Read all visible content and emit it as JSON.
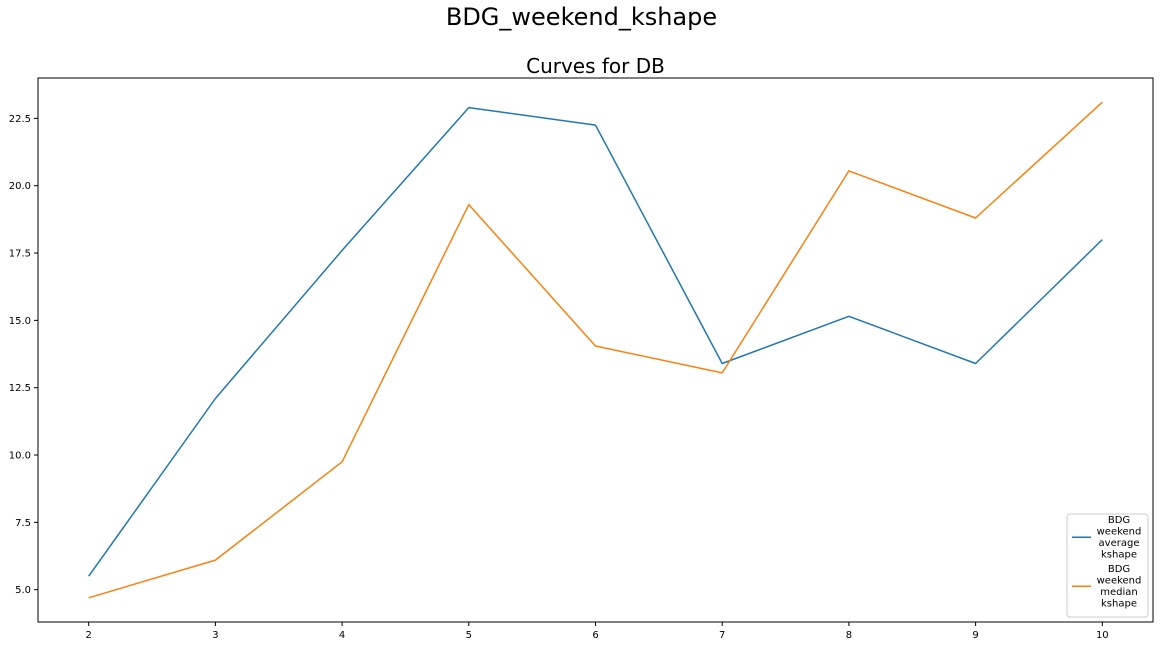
{
  "suptitle": "BDG_weekend_kshape",
  "chart_data": {
    "type": "line",
    "title": "Curves for DB",
    "xlabel": "",
    "ylabel": "",
    "x": [
      2,
      3,
      4,
      5,
      6,
      7,
      8,
      9,
      10
    ],
    "xlim": [
      1.6,
      10.4
    ],
    "ylim": [
      3.8,
      24.0
    ],
    "xticks": [
      "2",
      "3",
      "4",
      "5",
      "6",
      "7",
      "8",
      "9",
      "10"
    ],
    "yticks": [
      5.0,
      7.5,
      10.0,
      12.5,
      15.0,
      17.5,
      20.0,
      22.5
    ],
    "ytick_labels": [
      "5.0",
      "7.5",
      "10.0",
      "12.5",
      "15.0",
      "17.5",
      "20.0",
      "22.5"
    ],
    "grid": false,
    "legend_position": "lower-right",
    "series": [
      {
        "name": "BDG\nweekend\naverage\n kshape",
        "legend_lines": [
          "BDG",
          "weekend",
          "average",
          "kshape"
        ],
        "color": "#1f77b4",
        "values": [
          5.5,
          12.1,
          17.6,
          22.9,
          22.25,
          13.4,
          15.15,
          13.4,
          18.0
        ]
      },
      {
        "name": "BDG\nweekend\n median\n kshape",
        "legend_lines": [
          "BDG",
          "weekend",
          "median",
          "kshape"
        ],
        "color": "#ff7f0e",
        "values": [
          4.7,
          6.1,
          9.75,
          19.3,
          14.05,
          13.05,
          20.55,
          18.8,
          23.1
        ]
      }
    ]
  }
}
